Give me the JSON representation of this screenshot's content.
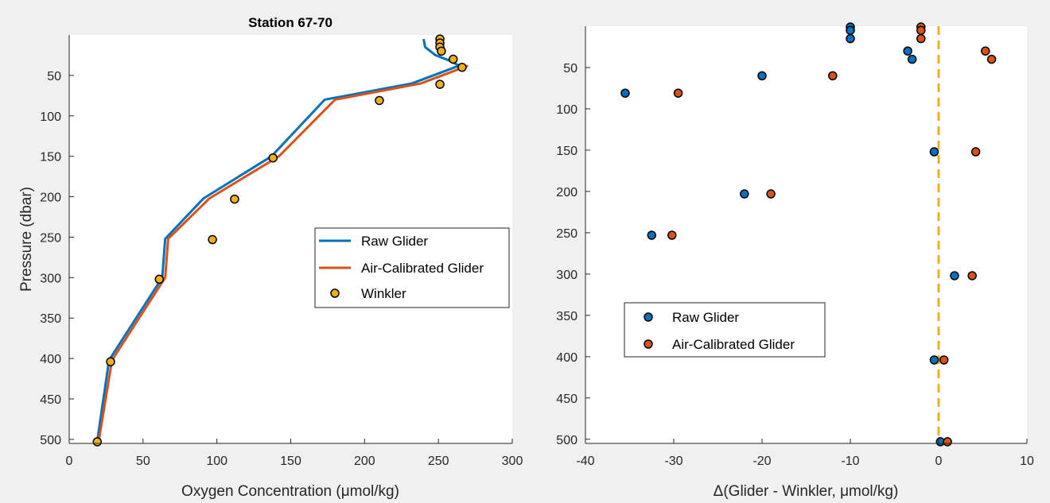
{
  "colors": {
    "raw": "#0072BD",
    "air": "#D95319",
    "winkler": "#EDB120",
    "zero_line": "#EDB120",
    "axes": "#262626"
  },
  "chart_data": [
    {
      "type": "line",
      "title": "Station 67-70",
      "xlabel": "Oxygen Concentration (μmol/kg)",
      "ylabel": "Pressure (dbar)",
      "xlim": [
        0,
        300
      ],
      "ylim": [
        505,
        0
      ],
      "y_reversed": true,
      "xticks": [
        "0",
        "50",
        "100",
        "150",
        "200",
        "250",
        "300"
      ],
      "yticks": [
        "50",
        "100",
        "150",
        "200",
        "250",
        "300",
        "350",
        "400",
        "450",
        "500"
      ],
      "legend": {
        "placement": "right",
        "entries": [
          "Raw Glider",
          "Air-Calibrated Glider",
          "Winkler"
        ]
      },
      "series": [
        {
          "name": "Raw Glider",
          "kind": "line",
          "x": [
            240,
            241,
            248,
            258,
            264,
            232,
            173,
            137,
            91,
            65,
            63,
            27,
            19
          ],
          "y": [
            5,
            15,
            25,
            32,
            38,
            60,
            80,
            150,
            202,
            252,
            300,
            402,
            502
          ]
        },
        {
          "name": "Air-Calibrated Glider",
          "kind": "line",
          "x": [
            270,
            238,
            180,
            142,
            95,
            67,
            65,
            29,
            20
          ],
          "y": [
            38,
            60,
            80,
            150,
            202,
            252,
            300,
            402,
            502
          ]
        },
        {
          "name": "Winkler",
          "kind": "scatter",
          "x": [
            251,
            251,
            251,
            252,
            260,
            266,
            251,
            210,
            138,
            112,
            97,
            61,
            28,
            19
          ],
          "y": [
            5,
            10,
            15,
            20,
            30,
            40,
            61,
            81,
            152,
            203,
            253,
            302,
            404,
            503
          ]
        }
      ]
    },
    {
      "type": "scatter",
      "title": "",
      "xlabel": "Δ(Glider - Winkler, μmol/kg)",
      "ylabel": "",
      "xlim": [
        -40,
        10
      ],
      "ylim": [
        505,
        0
      ],
      "y_reversed": true,
      "xticks": [
        "-40",
        "-30",
        "-20",
        "-10",
        "0",
        "10"
      ],
      "yticks": [
        "50",
        "100",
        "150",
        "200",
        "250",
        "300",
        "350",
        "400",
        "450",
        "500"
      ],
      "reference_line": {
        "x": 0,
        "style": "dashed"
      },
      "legend": {
        "placement": "lower-left",
        "entries": [
          "Raw Glider",
          "Air-Calibrated Glider"
        ]
      },
      "series": [
        {
          "name": "Raw Glider",
          "x": [
            -10,
            -10,
            -10,
            -3.5,
            -3,
            -20,
            -35.5,
            -0.5,
            -22,
            -32.5,
            1.8,
            -0.5,
            0.2
          ],
          "y": [
            1,
            5,
            15,
            30,
            40,
            60,
            81,
            152,
            203,
            253,
            302,
            404,
            503
          ]
        },
        {
          "name": "Air-Calibrated Glider",
          "x": [
            -2,
            -2,
            -2,
            5.3,
            6,
            -12,
            -29.5,
            4.2,
            -19,
            -30.2,
            3.8,
            0.6,
            1
          ],
          "y": [
            1,
            5,
            15,
            30,
            40,
            60,
            81,
            152,
            203,
            253,
            302,
            404,
            503
          ]
        }
      ]
    }
  ]
}
